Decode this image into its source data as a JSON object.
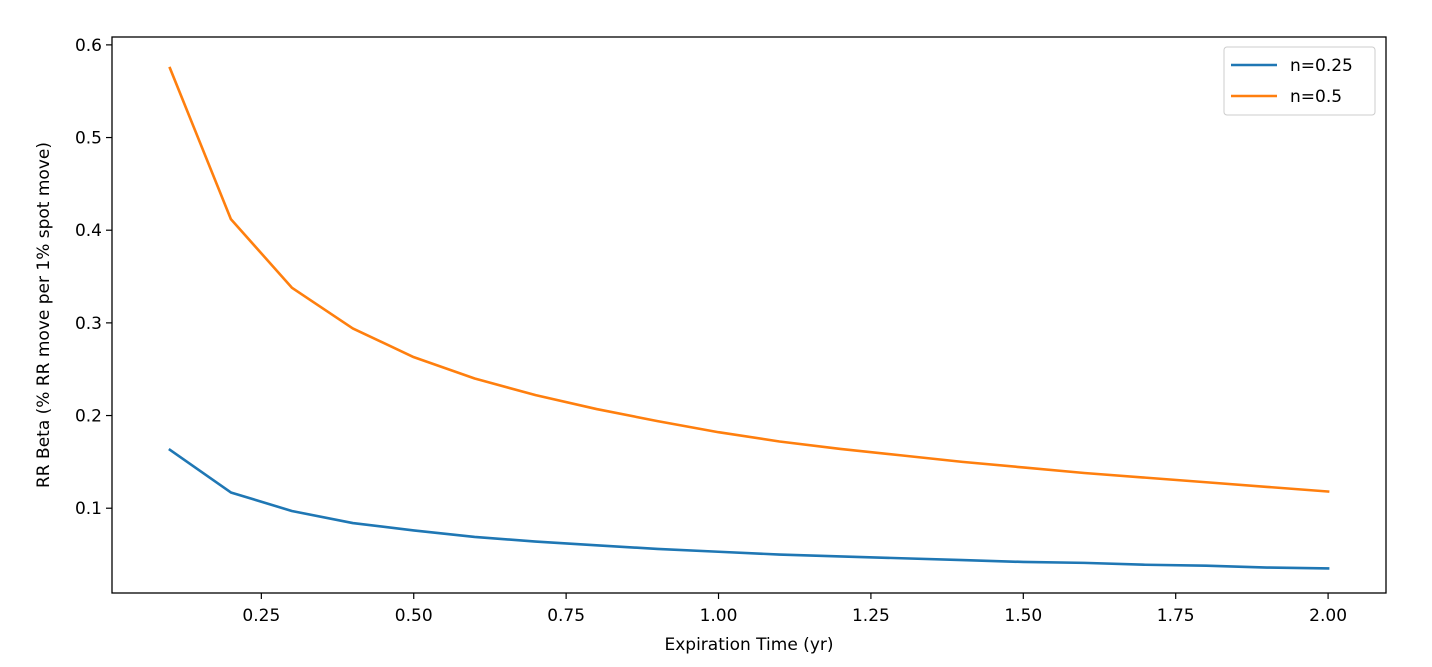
{
  "chart_data": {
    "type": "line",
    "title": "",
    "xlabel": "Expiration Time (yr)",
    "ylabel": "RR Beta (% RR move per 1% spot move)",
    "xlim": [
      0.005,
      2.095
    ],
    "ylim": [
      0.0085,
      0.6085
    ],
    "xticks": [
      0.25,
      0.5,
      0.75,
      1.0,
      1.25,
      1.5,
      1.75,
      2.0
    ],
    "xtick_labels": [
      "0.25",
      "0.50",
      "0.75",
      "1.00",
      "1.25",
      "1.50",
      "1.75",
      "2.00"
    ],
    "yticks": [
      0.1,
      0.2,
      0.3,
      0.4,
      0.5,
      0.6
    ],
    "ytick_labels": [
      "0.1",
      "0.2",
      "0.3",
      "0.4",
      "0.5",
      "0.6"
    ],
    "grid": false,
    "legend_position": "top-right",
    "x": [
      0.1,
      0.2,
      0.3,
      0.4,
      0.5,
      0.6,
      0.7,
      0.8,
      0.9,
      1.0,
      1.1,
      1.2,
      1.3,
      1.4,
      1.5,
      1.6,
      1.7,
      1.8,
      1.9,
      2.0
    ],
    "series": [
      {
        "name": "n=0.25",
        "color": "#1f77b4",
        "values": [
          0.163,
          0.117,
          0.097,
          0.084,
          0.076,
          0.069,
          0.064,
          0.06,
          0.056,
          0.053,
          0.05,
          0.048,
          0.046,
          0.044,
          0.042,
          0.041,
          0.039,
          0.038,
          0.036,
          0.035
        ]
      },
      {
        "name": "n=0.5",
        "color": "#ff7f0e",
        "values": [
          0.575,
          0.412,
          0.338,
          0.294,
          0.263,
          0.24,
          0.222,
          0.207,
          0.194,
          0.182,
          0.172,
          0.164,
          0.157,
          0.15,
          0.144,
          0.138,
          0.133,
          0.128,
          0.123,
          0.118
        ]
      }
    ]
  }
}
